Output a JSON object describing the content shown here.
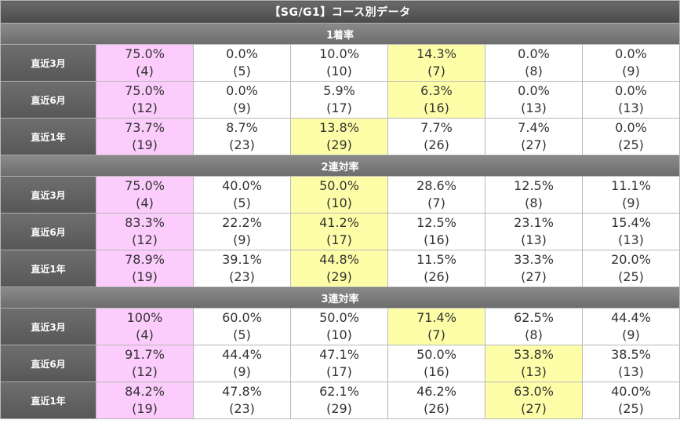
{
  "title": "【SG/G1】コース別データ",
  "colors": {
    "pink": "#fcccfc",
    "yellow": "#fefea8"
  },
  "sections": [
    {
      "name": "1着率",
      "rows": [
        {
          "label": "直近3月",
          "cells": [
            {
              "pct": "75.0%",
              "count": "(4)",
              "hl": "pink"
            },
            {
              "pct": "0.0%",
              "count": "(5)"
            },
            {
              "pct": "10.0%",
              "count": "(10)"
            },
            {
              "pct": "14.3%",
              "count": "(7)",
              "hl": "yellow"
            },
            {
              "pct": "0.0%",
              "count": "(8)"
            },
            {
              "pct": "0.0%",
              "count": "(9)"
            }
          ]
        },
        {
          "label": "直近6月",
          "cells": [
            {
              "pct": "75.0%",
              "count": "(12)",
              "hl": "pink"
            },
            {
              "pct": "0.0%",
              "count": "(9)"
            },
            {
              "pct": "5.9%",
              "count": "(17)"
            },
            {
              "pct": "6.3%",
              "count": "(16)",
              "hl": "yellow"
            },
            {
              "pct": "0.0%",
              "count": "(13)"
            },
            {
              "pct": "0.0%",
              "count": "(13)"
            }
          ]
        },
        {
          "label": "直近1年",
          "cells": [
            {
              "pct": "73.7%",
              "count": "(19)",
              "hl": "pink"
            },
            {
              "pct": "8.7%",
              "count": "(23)"
            },
            {
              "pct": "13.8%",
              "count": "(29)",
              "hl": "yellow"
            },
            {
              "pct": "7.7%",
              "count": "(26)"
            },
            {
              "pct": "7.4%",
              "count": "(27)"
            },
            {
              "pct": "0.0%",
              "count": "(25)"
            }
          ]
        }
      ]
    },
    {
      "name": "2連対率",
      "rows": [
        {
          "label": "直近3月",
          "cells": [
            {
              "pct": "75.0%",
              "count": "(4)",
              "hl": "pink"
            },
            {
              "pct": "40.0%",
              "count": "(5)"
            },
            {
              "pct": "50.0%",
              "count": "(10)",
              "hl": "yellow"
            },
            {
              "pct": "28.6%",
              "count": "(7)"
            },
            {
              "pct": "12.5%",
              "count": "(8)"
            },
            {
              "pct": "11.1%",
              "count": "(9)"
            }
          ]
        },
        {
          "label": "直近6月",
          "cells": [
            {
              "pct": "83.3%",
              "count": "(12)",
              "hl": "pink"
            },
            {
              "pct": "22.2%",
              "count": "(9)"
            },
            {
              "pct": "41.2%",
              "count": "(17)",
              "hl": "yellow"
            },
            {
              "pct": "12.5%",
              "count": "(16)"
            },
            {
              "pct": "23.1%",
              "count": "(13)"
            },
            {
              "pct": "15.4%",
              "count": "(13)"
            }
          ]
        },
        {
          "label": "直近1年",
          "cells": [
            {
              "pct": "78.9%",
              "count": "(19)",
              "hl": "pink"
            },
            {
              "pct": "39.1%",
              "count": "(23)"
            },
            {
              "pct": "44.8%",
              "count": "(29)",
              "hl": "yellow"
            },
            {
              "pct": "11.5%",
              "count": "(26)"
            },
            {
              "pct": "33.3%",
              "count": "(27)"
            },
            {
              "pct": "20.0%",
              "count": "(25)"
            }
          ]
        }
      ]
    },
    {
      "name": "3連対率",
      "rows": [
        {
          "label": "直近3月",
          "cells": [
            {
              "pct": "100%",
              "count": "(4)",
              "hl": "pink"
            },
            {
              "pct": "60.0%",
              "count": "(5)"
            },
            {
              "pct": "50.0%",
              "count": "(10)"
            },
            {
              "pct": "71.4%",
              "count": "(7)",
              "hl": "yellow"
            },
            {
              "pct": "62.5%",
              "count": "(8)"
            },
            {
              "pct": "44.4%",
              "count": "(9)"
            }
          ]
        },
        {
          "label": "直近6月",
          "cells": [
            {
              "pct": "91.7%",
              "count": "(12)",
              "hl": "pink"
            },
            {
              "pct": "44.4%",
              "count": "(9)"
            },
            {
              "pct": "47.1%",
              "count": "(17)"
            },
            {
              "pct": "50.0%",
              "count": "(16)"
            },
            {
              "pct": "53.8%",
              "count": "(13)",
              "hl": "yellow"
            },
            {
              "pct": "38.5%",
              "count": "(13)"
            }
          ]
        },
        {
          "label": "直近1年",
          "cells": [
            {
              "pct": "84.2%",
              "count": "(19)",
              "hl": "pink"
            },
            {
              "pct": "47.8%",
              "count": "(23)"
            },
            {
              "pct": "62.1%",
              "count": "(29)"
            },
            {
              "pct": "46.2%",
              "count": "(26)"
            },
            {
              "pct": "63.0%",
              "count": "(27)",
              "hl": "yellow"
            },
            {
              "pct": "40.0%",
              "count": "(25)"
            }
          ]
        }
      ]
    }
  ]
}
